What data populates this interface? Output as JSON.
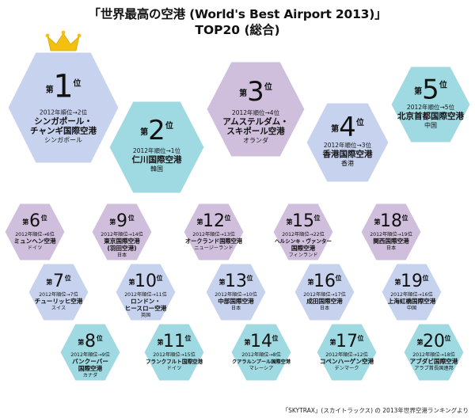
{
  "title": "「世界最高の空港 (World's Best Airport 2013)」",
  "subtitle": "TOP20 (総合)",
  "source": "「SKYTRAX」(スカイトラックス) の 2013年世界空港ランキングより",
  "labels": {
    "rank_prefix": "第",
    "rank_suffix": "位",
    "prev_prefix": "2012年順位→",
    "prev_suffix": "位"
  },
  "colors": {
    "blue": "#c7d3ee",
    "cyan": "#9fd9e2",
    "purple": "#cfbfdc",
    "crown": "#f4c010"
  },
  "chart_data": {
    "type": "table",
    "title": "「世界最高の空港 (World's Best Airport 2013)」 TOP20 (総合)",
    "columns": [
      "rank_2013",
      "rank_2012",
      "airport",
      "country"
    ],
    "rows": [
      {
        "rank": 1,
        "prev": 2,
        "name": [
          "シンガポール・",
          "チャンギ国際空港"
        ],
        "country": "シンガポール",
        "color": "blue"
      },
      {
        "rank": 2,
        "prev": 1,
        "name": [
          "仁川国際空港"
        ],
        "country": "韓国",
        "color": "cyan"
      },
      {
        "rank": 3,
        "prev": 4,
        "name": [
          "アムステルダム・",
          "スキポール空港"
        ],
        "country": "オランダ",
        "color": "purple"
      },
      {
        "rank": 4,
        "prev": 3,
        "name": [
          "香港国際空港"
        ],
        "country": "香港",
        "color": "blue"
      },
      {
        "rank": 5,
        "prev": 5,
        "name": [
          "北京首都国際空港"
        ],
        "country": "中国",
        "color": "cyan"
      },
      {
        "rank": 6,
        "prev": 6,
        "name": [
          "ミュンヘン空港"
        ],
        "country": "ドイツ",
        "color": "purple"
      },
      {
        "rank": 7,
        "prev": 7,
        "name": [
          "チューリッヒ空港"
        ],
        "country": "スイス",
        "color": "blue"
      },
      {
        "rank": 8,
        "prev": 9,
        "name": [
          "バンクーバー",
          "国際空港"
        ],
        "country": "カナダ",
        "color": "cyan"
      },
      {
        "rank": 9,
        "prev": 14,
        "name": [
          "東京国際空港",
          "(羽田空港)"
        ],
        "country": "日本",
        "color": "purple"
      },
      {
        "rank": 10,
        "prev": 11,
        "name": [
          "ロンドン・",
          "ヒースロー空港"
        ],
        "country": "英国",
        "color": "blue"
      },
      {
        "rank": 11,
        "prev": 15,
        "name": [
          "フランクフルト国際空港"
        ],
        "country": "ドイツ",
        "color": "cyan"
      },
      {
        "rank": 12,
        "prev": 13,
        "name": [
          "オークランド国際空港"
        ],
        "country": "ニュージーランド",
        "color": "purple"
      },
      {
        "rank": 13,
        "prev": 10,
        "name": [
          "中部国際空港"
        ],
        "country": "日本",
        "color": "blue"
      },
      {
        "rank": 14,
        "prev": 8,
        "name": [
          "クアラルンプール国際空港"
        ],
        "country": "マレーシア",
        "color": "cyan"
      },
      {
        "rank": 15,
        "prev": 22,
        "name": [
          "ヘルシンキ・ヴァンター",
          "国際空港"
        ],
        "country": "フィンランド",
        "color": "purple"
      },
      {
        "rank": 16,
        "prev": 17,
        "name": [
          "成田国際空港"
        ],
        "country": "日本",
        "color": "blue"
      },
      {
        "rank": 17,
        "prev": 12,
        "name": [
          "コペンハーゲン空港"
        ],
        "country": "デンマーク",
        "color": "cyan"
      },
      {
        "rank": 18,
        "prev": 19,
        "name": [
          "関西国際空港"
        ],
        "country": "日本",
        "color": "purple"
      },
      {
        "rank": 19,
        "prev": 16,
        "name": [
          "上海虹橋国際空港"
        ],
        "country": "中国",
        "color": "blue"
      },
      {
        "rank": 20,
        "prev": 18,
        "name": [
          "アブダビ国際空港"
        ],
        "country": "アラブ首長国連邦",
        "color": "cyan"
      }
    ]
  }
}
